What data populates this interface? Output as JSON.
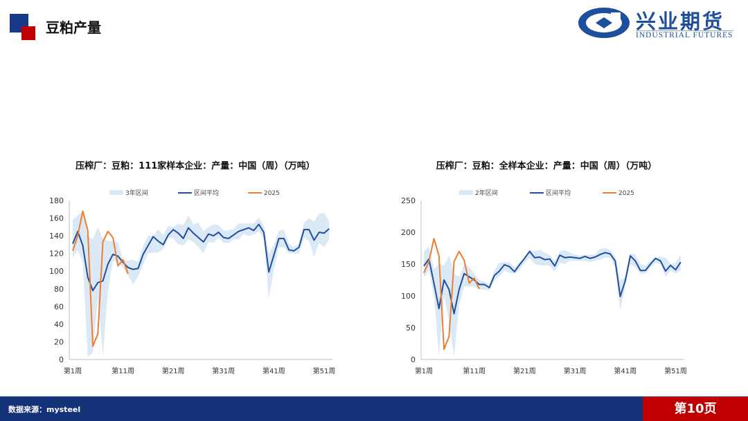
{
  "header": {
    "title": "豆粕产量",
    "logo_cn": "兴业期货",
    "logo_en": "INDUSTRIAL FUTURES"
  },
  "footer": {
    "source": "数据来源：mysteel",
    "page": "第10页"
  },
  "colors": {
    "band": "#dbe8f6",
    "avg": "#1f4e9c",
    "y2025": "#ed7d31",
    "brand_blue": "#163a8a",
    "brand_red": "#c00000"
  },
  "chart_data": [
    {
      "type": "line",
      "title": "压榨厂：豆粕：111家样本企业：产量：中国（周）（万吨）",
      "ylim": [
        0,
        180
      ],
      "yticks": [
        0,
        20,
        40,
        60,
        80,
        100,
        120,
        140,
        160,
        180
      ],
      "xlim": [
        1,
        52
      ],
      "xtick_labels": [
        {
          "week": 1,
          "label": "第1周"
        },
        {
          "week": 11,
          "label": "第11周"
        },
        {
          "week": 21,
          "label": "第21周"
        },
        {
          "week": 31,
          "label": "第31周"
        },
        {
          "week": 41,
          "label": "第41周"
        },
        {
          "week": 51,
          "label": "第51周"
        }
      ],
      "legend_position": "top",
      "band": {
        "name": "3年区间",
        "upper": [
          158,
          163,
          168,
          140,
          136,
          150,
          137,
          134,
          134,
          132,
          112,
          112,
          113,
          110,
          129,
          140,
          140,
          147,
          141,
          151,
          150,
          154,
          152,
          163,
          153,
          155,
          145,
          150,
          153,
          152,
          146,
          146,
          148,
          154,
          154,
          154,
          154,
          161,
          152,
          120,
          130,
          146,
          147,
          131,
          127,
          131,
          155,
          160,
          156,
          165,
          166,
          156
        ],
        "lower": [
          115,
          124,
          110,
          3,
          8,
          70,
          5,
          78,
          112,
          110,
          104,
          95,
          85,
          94,
          107,
          120,
          121,
          121,
          125,
          138,
          137,
          130,
          129,
          136,
          133,
          127,
          120,
          133,
          132,
          138,
          132,
          132,
          136,
          136,
          142,
          140,
          141,
          145,
          137,
          69,
          102,
          127,
          127,
          120,
          120,
          120,
          138,
          134,
          116,
          132,
          127,
          136
        ]
      },
      "series": [
        {
          "name": "区间平均",
          "values": [
            131,
            145,
            129,
            93,
            78,
            87,
            89,
            108,
            119,
            117,
            110,
            104,
            102,
            103,
            119,
            129,
            139,
            134,
            130,
            141,
            147,
            143,
            137,
            149,
            143,
            138,
            133,
            142,
            140,
            144,
            138,
            137,
            141,
            145,
            147,
            149,
            146,
            153,
            144,
            99,
            118,
            137,
            137,
            124,
            123,
            127,
            147,
            147,
            135,
            144,
            143,
            148
          ]
        },
        {
          "name": "2025",
          "values": [
            123,
            140,
            168,
            146,
            15,
            29,
            133,
            145,
            138,
            106,
            113,
            97
          ]
        }
      ]
    },
    {
      "type": "line",
      "title": "压榨厂：豆粕：全样本企业：产量：中国（周）（万吨）",
      "ylim": [
        0,
        250
      ],
      "yticks": [
        0,
        50,
        100,
        150,
        200,
        250
      ],
      "xlim": [
        1,
        52
      ],
      "xtick_labels": [
        {
          "week": 1,
          "label": "第1周"
        },
        {
          "week": 11,
          "label": "第11周"
        },
        {
          "week": 21,
          "label": "第21周"
        },
        {
          "week": 31,
          "label": "第31周"
        },
        {
          "week": 41,
          "label": "第41周"
        },
        {
          "week": 51,
          "label": "第51周"
        }
      ],
      "legend_position": "top",
      "band": {
        "name": "2年区间",
        "upper": [
          170,
          178,
          142,
          150,
          148,
          163,
          135,
          130,
          150,
          145,
          135,
          125,
          122,
          118,
          140,
          152,
          153,
          153,
          145,
          152,
          160,
          172,
          170,
          173,
          168,
          165,
          155,
          170,
          172,
          168,
          165,
          163,
          165,
          165,
          165,
          174,
          175,
          172,
          162,
          125,
          128,
          167,
          165,
          150,
          148,
          155,
          160,
          162,
          160,
          150,
          152,
          165
        ],
        "lower": [
          128,
          140,
          100,
          5,
          100,
          60,
          5,
          85,
          115,
          115,
          115,
          110,
          110,
          108,
          125,
          130,
          140,
          136,
          135,
          140,
          152,
          160,
          150,
          148,
          148,
          147,
          138,
          152,
          150,
          155,
          155,
          155,
          155,
          153,
          155,
          157,
          160,
          160,
          145,
          77,
          115,
          150,
          145,
          135,
          135,
          145,
          152,
          150,
          130,
          140,
          135,
          140
        ]
      },
      "series": [
        {
          "name": "区间平均",
          "values": [
            147,
            158,
            120,
            80,
            125,
            110,
            72,
            110,
            135,
            130,
            125,
            118,
            118,
            113,
            132,
            139,
            149,
            146,
            138,
            149,
            159,
            170,
            160,
            161,
            157,
            158,
            147,
            164,
            160,
            161,
            160,
            159,
            162,
            159,
            161,
            165,
            168,
            166,
            155,
            99,
            124,
            163,
            155,
            140,
            140,
            150,
            159,
            155,
            139,
            148,
            141,
            153
          ]
        },
        {
          "name": "2025",
          "values": [
            136,
            154,
            190,
            163,
            16,
            36,
            154,
            170,
            156,
            120,
            128,
            111
          ]
        }
      ]
    }
  ]
}
